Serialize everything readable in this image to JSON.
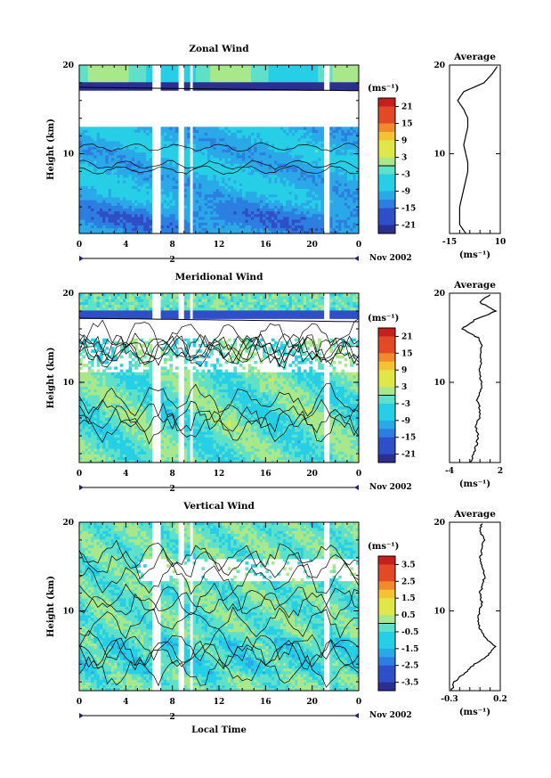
{
  "figure": {
    "xlabel": "Local Time",
    "date_label": "Nov 2002",
    "day_label": "2",
    "colorbar_unit": "(ms⁻¹)",
    "avg_unit": "(ms⁻¹)"
  },
  "chart_data": [
    {
      "type": "heatmap",
      "title": "Zonal Wind",
      "ylabel": "Height (km)",
      "x_ticks": [
        "0",
        "4",
        "8",
        "12",
        "16",
        "20",
        "0"
      ],
      "xlim": [
        0,
        24
      ],
      "y_ticks": [
        "20",
        "10"
      ],
      "ylim": [
        1,
        20
      ],
      "colorbar_ticks": [
        "21",
        "15",
        "9",
        "3",
        "-3",
        "-9",
        "-15",
        "-21"
      ],
      "colorbar_range": [
        -24,
        24
      ],
      "avg_title": "Average",
      "avg_x_ticks": [
        "-15",
        "10"
      ],
      "avg_xlim": [
        -15,
        10
      ],
      "avg_profile_heights": [
        1,
        2,
        3,
        4,
        5,
        6,
        7,
        8,
        9,
        10,
        11,
        12,
        13,
        14,
        15,
        16,
        17,
        18,
        19,
        20
      ],
      "avg_profile_values": [
        -7,
        -10,
        -10,
        -10,
        -9,
        -8,
        -7,
        -6,
        -6,
        -7,
        -8,
        -7,
        -6,
        -6,
        -8,
        -11,
        -8,
        2,
        6,
        9
      ]
    },
    {
      "type": "heatmap",
      "title": "Meridional Wind",
      "ylabel": "Height (km)",
      "x_ticks": [
        "0",
        "4",
        "8",
        "12",
        "16",
        "20",
        "0"
      ],
      "xlim": [
        0,
        24
      ],
      "y_ticks": [
        "20",
        "10"
      ],
      "ylim": [
        1,
        20
      ],
      "colorbar_ticks": [
        "21",
        "15",
        "9",
        "3",
        "-3",
        "-9",
        "-15",
        "-21"
      ],
      "colorbar_range": [
        -24,
        24
      ],
      "avg_title": "Average",
      "avg_x_ticks": [
        "-4",
        "2"
      ],
      "avg_xlim": [
        -4,
        2
      ],
      "avg_profile_heights": [
        1,
        2,
        3,
        4,
        5,
        6,
        7,
        8,
        9,
        10,
        11,
        12,
        13,
        14,
        15,
        16,
        17,
        18,
        19,
        20
      ],
      "avg_profile_values": [
        -1.5,
        -1.2,
        -0.8,
        -0.6,
        -0.9,
        -0.5,
        -0.4,
        -0.7,
        -0.3,
        -0.2,
        -0.5,
        -0.3,
        -0.4,
        -0.2,
        -0.6,
        -2.5,
        -1.0,
        1.5,
        -0.5,
        1.0
      ]
    },
    {
      "type": "heatmap",
      "title": "Vertical Wind",
      "ylabel": "Height (km)",
      "x_ticks": [
        "0",
        "4",
        "8",
        "12",
        "16",
        "20",
        "0"
      ],
      "xlim": [
        0,
        24
      ],
      "y_ticks": [
        "20",
        "10"
      ],
      "ylim": [
        1,
        20
      ],
      "colorbar_ticks": [
        "3.5",
        "2.5",
        "1.5",
        "0.5",
        "-0.5",
        "-1.5",
        "-2.5",
        "-3.5"
      ],
      "colorbar_range": [
        -4,
        4
      ],
      "avg_title": "Average",
      "avg_x_ticks": [
        "-0.3",
        "0.2"
      ],
      "avg_xlim": [
        -0.3,
        0.2
      ],
      "avg_profile_heights": [
        1,
        2,
        3,
        4,
        5,
        6,
        7,
        8,
        9,
        10,
        11,
        12,
        13,
        14,
        15,
        16,
        17,
        18,
        19,
        20
      ],
      "avg_profile_values": [
        -0.28,
        -0.25,
        -0.15,
        -0.05,
        0.08,
        0.15,
        0.05,
        0.0,
        -0.02,
        0.0,
        0.02,
        0.0,
        0.03,
        0.05,
        0.02,
        0.0,
        0.02,
        0.04,
        0.0,
        0.02
      ]
    }
  ]
}
